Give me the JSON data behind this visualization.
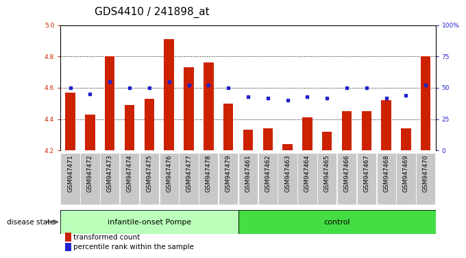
{
  "title": "GDS4410 / 241898_at",
  "samples": [
    "GSM947471",
    "GSM947472",
    "GSM947473",
    "GSM947474",
    "GSM947475",
    "GSM947476",
    "GSM947477",
    "GSM947478",
    "GSM947479",
    "GSM947461",
    "GSM947462",
    "GSM947463",
    "GSM947464",
    "GSM947465",
    "GSM947466",
    "GSM947467",
    "GSM947468",
    "GSM947469",
    "GSM947470"
  ],
  "bar_values": [
    4.57,
    4.43,
    4.8,
    4.49,
    4.53,
    4.91,
    4.73,
    4.76,
    4.5,
    4.33,
    4.34,
    4.24,
    4.41,
    4.32,
    4.45,
    4.45,
    4.52,
    4.34,
    4.8
  ],
  "percentile_values": [
    50,
    45,
    55,
    50,
    50,
    55,
    52,
    52,
    50,
    43,
    42,
    40,
    43,
    42,
    50,
    50,
    42,
    44,
    52
  ],
  "ylim_left": [
    4.2,
    5.0
  ],
  "yticks_left": [
    4.2,
    4.4,
    4.6,
    4.8,
    5.0
  ],
  "yticks_right": [
    0,
    25,
    50,
    75,
    100
  ],
  "ytick_right_labels": [
    "0",
    "25",
    "50",
    "75",
    "100%"
  ],
  "grid_values": [
    4.4,
    4.6,
    4.8
  ],
  "bar_color": "#cc2200",
  "dot_color": "#2222cc",
  "bar_bottom": 4.2,
  "group1_label": "infantile-onset Pompe",
  "group2_label": "control",
  "group1_count": 9,
  "group2_count": 10,
  "disease_state_label": "disease state",
  "legend_bar_label": "transformed count",
  "legend_dot_label": "percentile rank within the sample",
  "bg_color_plot": "#ffffff",
  "bg_color_tick": "#c8c8c8",
  "group1_color": "#bbffbb",
  "group2_color": "#44dd44",
  "title_fontsize": 11,
  "tick_fontsize": 6.5,
  "label_fontsize": 8
}
